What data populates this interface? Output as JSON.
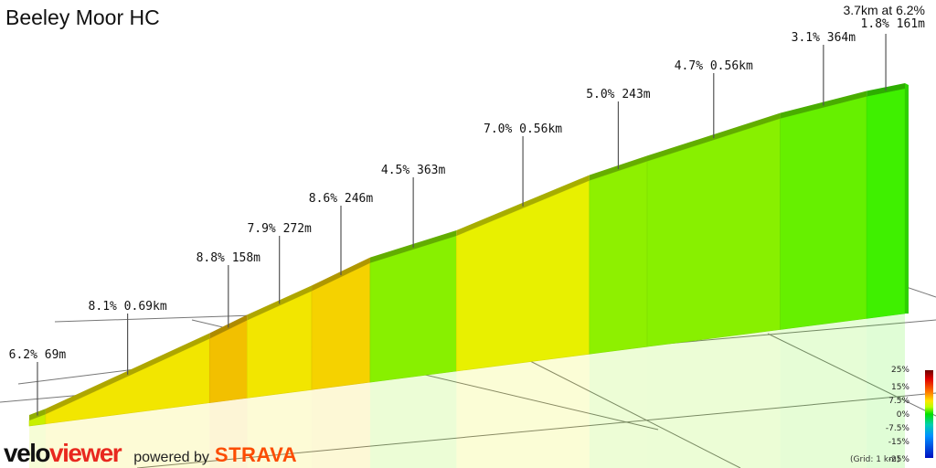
{
  "title": "Beeley Moor HC",
  "summary": {
    "headline": "3.7km at 6.2%",
    "last_segment": "1.8% 161m"
  },
  "chart_data": {
    "type": "area",
    "segments": [
      {
        "label": "6.2% 69m",
        "gradient": 6.2,
        "distance_m": 69
      },
      {
        "label": "8.1% 0.69km",
        "gradient": 8.1,
        "distance_m": 690
      },
      {
        "label": "8.8% 158m",
        "gradient": 8.8,
        "distance_m": 158
      },
      {
        "label": "7.9% 272m",
        "gradient": 7.9,
        "distance_m": 272
      },
      {
        "label": "8.6% 246m",
        "gradient": 8.6,
        "distance_m": 246
      },
      {
        "label": "4.5% 363m",
        "gradient": 4.5,
        "distance_m": 363
      },
      {
        "label": "7.0% 0.56km",
        "gradient": 7.0,
        "distance_m": 560
      },
      {
        "label": "5.0% 243m",
        "gradient": 5.0,
        "distance_m": 243
      },
      {
        "label": "4.7% 0.56km",
        "gradient": 4.7,
        "distance_m": 560
      },
      {
        "label": "3.1% 364m",
        "gradient": 3.1,
        "distance_m": 364
      },
      {
        "label": "1.8% 161m",
        "gradient": 1.8,
        "distance_m": 161
      }
    ],
    "legend_ticks": [
      "25%",
      "15%",
      "7.5%",
      "0%",
      "-7.5%",
      "-15%",
      "-25%"
    ],
    "grid_note": "(Grid: 1 km)"
  },
  "branding": {
    "velo": "velo",
    "viewer": "viewer",
    "powered_by": "powered by",
    "strava": "STRAVA"
  }
}
